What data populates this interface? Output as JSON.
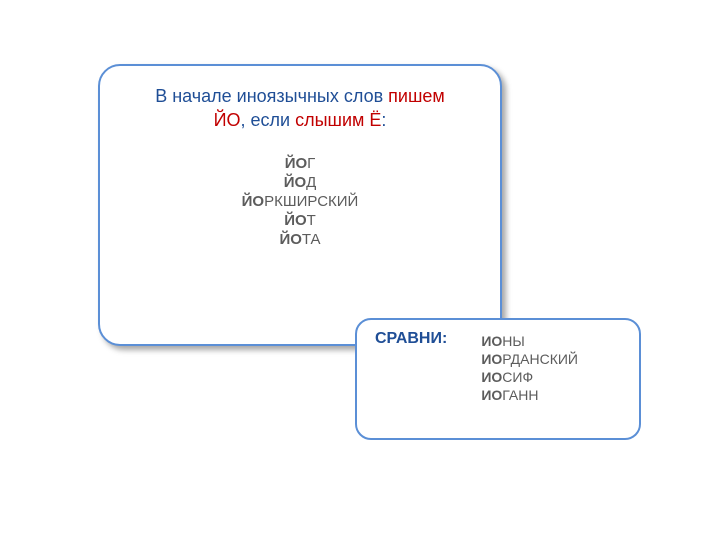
{
  "colors": {
    "border": "#5b8fd6",
    "title_blue": "#1f4e96",
    "accent_red": "#c10000",
    "text_gray": "#5c5c5c",
    "bg": "#ffffff"
  },
  "main": {
    "rule": {
      "part1": "В начале иноязычных слов ",
      "pishem": "пишем",
      "yo": "ЙО",
      "sep": ", если ",
      "slyshim": "слышим Ё",
      "colon": ":"
    },
    "examples": [
      {
        "bold": "ЙО",
        "rest": "Г"
      },
      {
        "bold": "ЙО",
        "rest": "Д"
      },
      {
        "bold": "ЙО",
        "rest": "РКШИРСКИЙ"
      },
      {
        "bold": "ЙО",
        "rest": "Т"
      },
      {
        "bold": "ЙО",
        "rest": "ТА"
      }
    ]
  },
  "compare": {
    "label": "СРАВНИ:",
    "words": [
      {
        "bold": "ИО",
        "rest": "НЫ"
      },
      {
        "bold": "ИО",
        "rest": "РДАНСКИЙ"
      },
      {
        "bold": "ИО",
        "rest": "СИФ"
      },
      {
        "bold": "ИО",
        "rest": "ГАНН"
      }
    ]
  }
}
